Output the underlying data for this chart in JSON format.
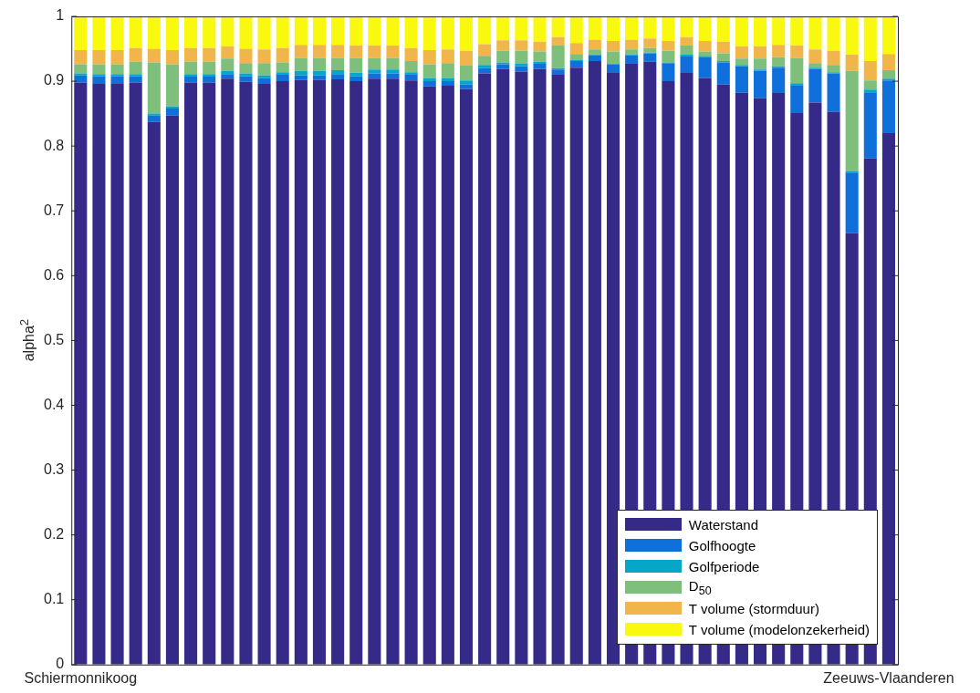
{
  "chart_data": {
    "type": "bar",
    "stacked": true,
    "ylabel": "alpha$^{2}$",
    "legend": "bottom right",
    "ylim": [
      0,
      1
    ],
    "yticks": [
      0,
      0.1,
      0.2,
      0.3,
      0.4,
      0.5,
      0.6,
      0.7,
      0.8,
      0.9,
      1
    ],
    "categories": [
      "Schiermonnikoog",
      null,
      null,
      null,
      null,
      null,
      null,
      null,
      null,
      null,
      null,
      null,
      null,
      null,
      null,
      null,
      null,
      null,
      null,
      null,
      null,
      null,
      null,
      null,
      null,
      null,
      null,
      null,
      null,
      null,
      null,
      null,
      null,
      null,
      null,
      null,
      null,
      null,
      null,
      null,
      null,
      null,
      null,
      null,
      "Zeeuws-Vlaanderen"
    ],
    "series": [
      {
        "name": "Waterstand",
        "color": "#352a87",
        "values": [
          0.898,
          0.897,
          0.897,
          0.898,
          0.837,
          0.847,
          0.898,
          0.898,
          0.904,
          0.899,
          0.896,
          0.9,
          0.902,
          0.902,
          0.903,
          0.9,
          0.904,
          0.904,
          0.901,
          0.892,
          0.893,
          0.888,
          0.912,
          0.919,
          0.915,
          0.919,
          0.91,
          0.921,
          0.931,
          0.914,
          0.927,
          0.93,
          0.9,
          0.914,
          0.905,
          0.895,
          0.882,
          0.874,
          0.883,
          0.852,
          0.867,
          0.853,
          0.666,
          0.781,
          0.82
        ]
      },
      {
        "name": "Golfhoogte",
        "color": "#0f70dc",
        "values": [
          0.011,
          0.011,
          0.011,
          0.01,
          0.01,
          0.011,
          0.009,
          0.009,
          0.007,
          0.009,
          0.009,
          0.011,
          0.007,
          0.007,
          0.008,
          0.008,
          0.008,
          0.008,
          0.01,
          0.008,
          0.007,
          0.007,
          0.008,
          0.007,
          0.008,
          0.008,
          0.008,
          0.01,
          0.009,
          0.012,
          0.013,
          0.013,
          0.028,
          0.025,
          0.032,
          0.034,
          0.041,
          0.042,
          0.038,
          0.042,
          0.052,
          0.059,
          0.093,
          0.102,
          0.081
        ]
      },
      {
        "name": "Golfperiode",
        "color": "#06a7c6",
        "values": [
          0.003,
          0.003,
          0.003,
          0.003,
          0.003,
          0.003,
          0.004,
          0.004,
          0.005,
          0.004,
          0.004,
          0.003,
          0.007,
          0.007,
          0.006,
          0.005,
          0.006,
          0.006,
          0.003,
          0.005,
          0.005,
          0.006,
          0.005,
          0.003,
          0.004,
          0.003,
          0.002,
          0.002,
          0.001,
          0.001,
          0.001,
          0.001,
          0.001,
          0.002,
          0.002,
          0.002,
          0.002,
          0.002,
          0.002,
          0.003,
          0.002,
          0.002,
          0.002,
          0.004,
          0.003
        ]
      },
      {
        "name": "D$_{50}$",
        "color": "#7dbf7b",
        "values": [
          0.014,
          0.015,
          0.015,
          0.019,
          0.079,
          0.065,
          0.019,
          0.019,
          0.019,
          0.016,
          0.019,
          0.015,
          0.02,
          0.02,
          0.019,
          0.023,
          0.018,
          0.018,
          0.017,
          0.021,
          0.023,
          0.023,
          0.014,
          0.018,
          0.02,
          0.016,
          0.035,
          0.009,
          0.008,
          0.019,
          0.008,
          0.007,
          0.018,
          0.014,
          0.007,
          0.012,
          0.01,
          0.017,
          0.014,
          0.039,
          0.007,
          0.011,
          0.155,
          0.014,
          0.013
        ]
      },
      {
        "name": "T volume (stormduur)",
        "color": "#f0b64b",
        "values": [
          0.022,
          0.022,
          0.022,
          0.021,
          0.021,
          0.022,
          0.021,
          0.021,
          0.019,
          0.022,
          0.021,
          0.022,
          0.02,
          0.02,
          0.02,
          0.019,
          0.019,
          0.019,
          0.02,
          0.022,
          0.021,
          0.023,
          0.018,
          0.016,
          0.016,
          0.015,
          0.013,
          0.017,
          0.015,
          0.016,
          0.015,
          0.015,
          0.015,
          0.013,
          0.016,
          0.018,
          0.019,
          0.019,
          0.019,
          0.019,
          0.021,
          0.022,
          0.025,
          0.03,
          0.025
        ]
      },
      {
        "name": "T volume (modelonzekerheid)",
        "color": "#f9f90f",
        "values": [
          0.052,
          0.052,
          0.052,
          0.049,
          0.05,
          0.052,
          0.049,
          0.049,
          0.046,
          0.05,
          0.051,
          0.049,
          0.044,
          0.044,
          0.044,
          0.045,
          0.045,
          0.045,
          0.049,
          0.052,
          0.051,
          0.053,
          0.043,
          0.037,
          0.037,
          0.039,
          0.032,
          0.041,
          0.036,
          0.038,
          0.036,
          0.034,
          0.038,
          0.033,
          0.038,
          0.039,
          0.046,
          0.046,
          0.044,
          0.045,
          0.051,
          0.053,
          0.059,
          0.069,
          0.058
        ]
      }
    ]
  }
}
